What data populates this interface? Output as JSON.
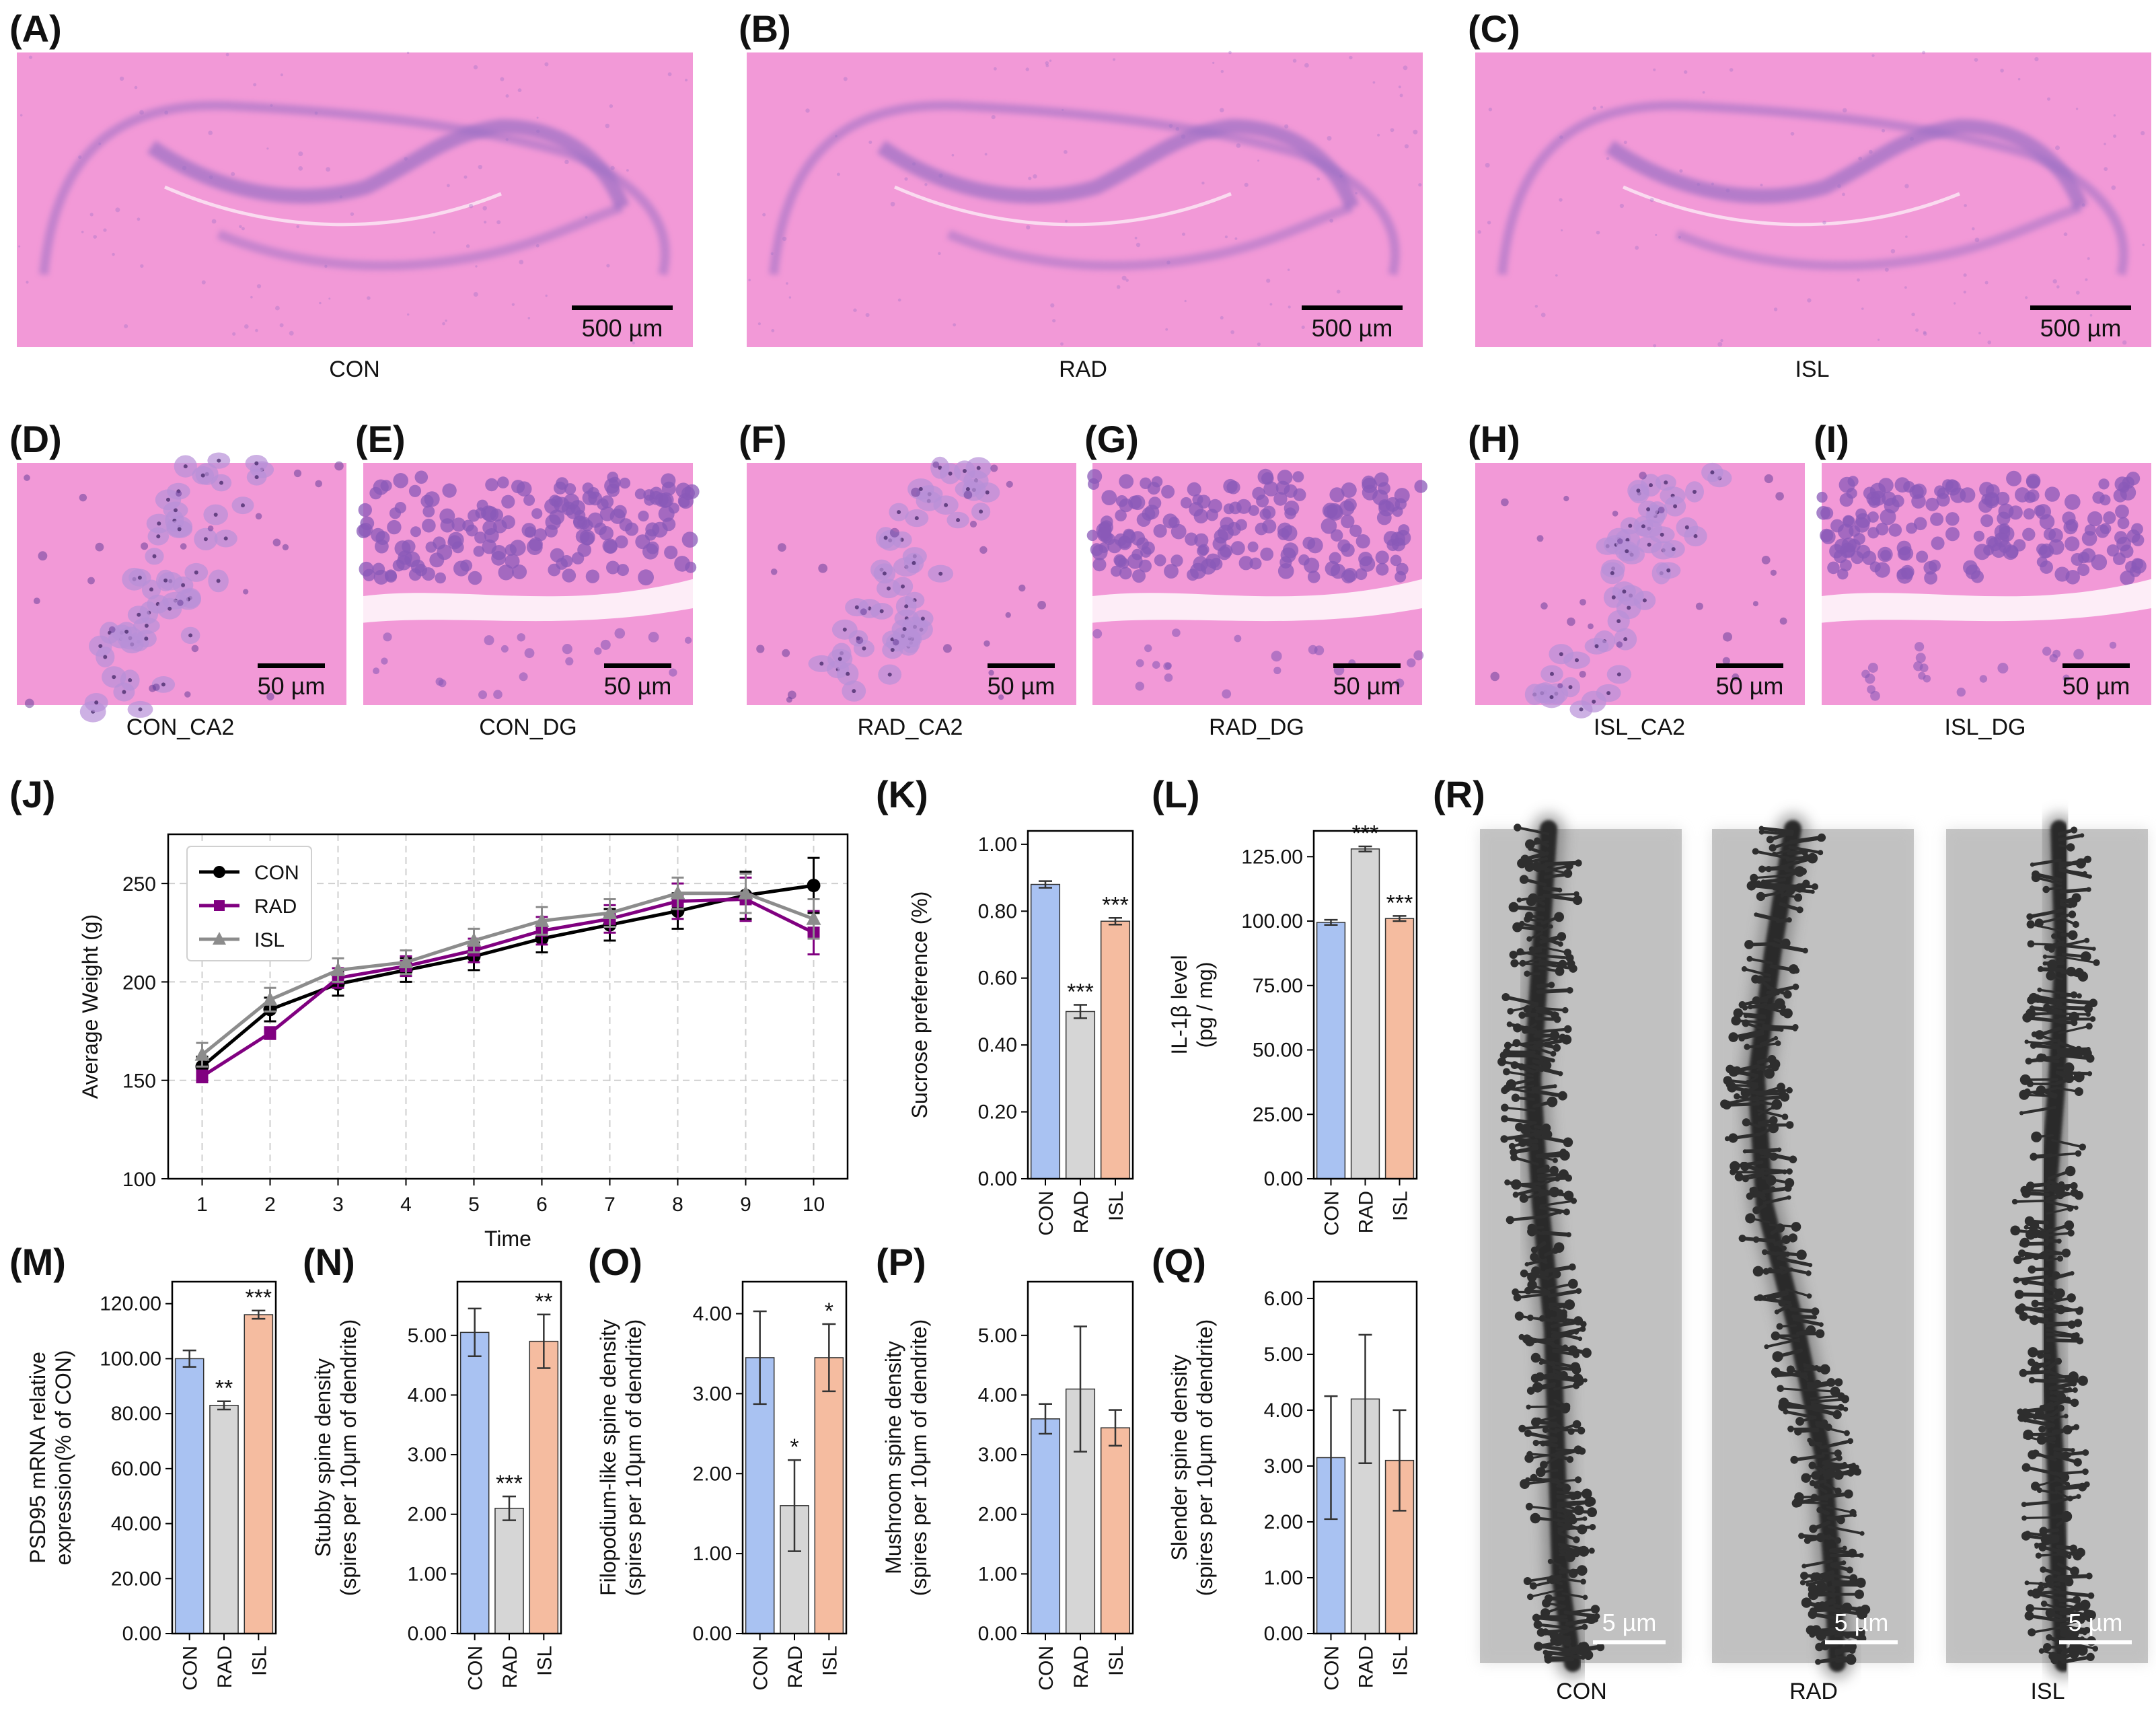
{
  "colors": {
    "con": "#a9c2f2",
    "rad": "#d6d6d6",
    "isl": "#f5bca0",
    "con_line": "#000000",
    "rad_line": "#800080",
    "isl_line": "#8c8c8c",
    "he_tissue": "#f08ad0",
    "he_cells": "#9b6fc5",
    "golgi_bg": "#c6c6c6",
    "golgi_dendrite": "#2a2a2a"
  },
  "panels": {
    "A": {
      "label": "(A)",
      "caption": "CON",
      "scale": "500 µm"
    },
    "B": {
      "label": "(B)",
      "caption": "RAD",
      "scale": "500 µm"
    },
    "C": {
      "label": "(C)",
      "caption": "ISL",
      "scale": "500 µm"
    },
    "D": {
      "label": "(D)",
      "caption": "CON_CA2",
      "scale": "50 µm"
    },
    "E": {
      "label": "(E)",
      "caption": "CON_DG",
      "scale": "50 µm"
    },
    "F": {
      "label": "(F)",
      "caption": "RAD_CA2",
      "scale": "50 µm"
    },
    "G": {
      "label": "(G)",
      "caption": "RAD_DG",
      "scale": "50 µm"
    },
    "H": {
      "label": "(H)",
      "caption": "ISL_CA2",
      "scale": "50 µm"
    },
    "I": {
      "label": "(I)",
      "caption": "ISL_DG",
      "scale": "50 µm"
    },
    "J": {
      "label": "(J)"
    },
    "K": {
      "label": "(K)"
    },
    "L": {
      "label": "(L)"
    },
    "M": {
      "label": "(M)"
    },
    "N": {
      "label": "(N)"
    },
    "O": {
      "label": "(O)"
    },
    "P": {
      "label": "(P)"
    },
    "Q": {
      "label": "(Q)"
    },
    "R": {
      "label": "(R)",
      "captions": [
        "CON",
        "RAD",
        "ISL"
      ],
      "scale": "5 µm"
    }
  },
  "chart_data": [
    {
      "id": "J",
      "type": "line",
      "xlabel": "Time",
      "ylabel": "Average Weight (g)",
      "x": [
        1,
        2,
        3,
        4,
        5,
        6,
        7,
        8,
        9,
        10
      ],
      "xticks": [
        "1",
        "2",
        "3",
        "4",
        "5",
        "6",
        "7",
        "8",
        "9",
        "10"
      ],
      "ylim": [
        100,
        275
      ],
      "yticks": [
        "100",
        "150",
        "200",
        "250"
      ],
      "grid": true,
      "legend": "top-left",
      "series": [
        {
          "name": "CON",
          "marker": "circle",
          "values": [
            157,
            186,
            199,
            206,
            213,
            222,
            229,
            236,
            244,
            249
          ],
          "err": [
            5,
            6,
            6,
            6,
            7,
            7,
            8,
            9,
            12,
            14
          ]
        },
        {
          "name": "RAD",
          "marker": "square",
          "values": [
            152,
            174,
            202,
            208,
            216,
            226,
            232,
            241,
            242,
            225
          ],
          "err": [
            3,
            3,
            5,
            5,
            6,
            7,
            7,
            9,
            11,
            11
          ]
        },
        {
          "name": "ISL",
          "marker": "triangle",
          "values": [
            163,
            191,
            206,
            210,
            221,
            231,
            235,
            245,
            245,
            232
          ],
          "err": [
            6,
            6,
            6,
            6,
            6,
            7,
            7,
            8,
            10,
            10
          ]
        }
      ]
    },
    {
      "id": "K",
      "type": "bar",
      "ylabel": "Sucrose preference (%)",
      "categories": [
        "CON",
        "RAD",
        "ISL"
      ],
      "values": [
        0.88,
        0.5,
        0.77
      ],
      "err": [
        0.01,
        0.02,
        0.01
      ],
      "stars": [
        "",
        "***",
        "***"
      ],
      "ylim": [
        0,
        1.04
      ],
      "yticks": [
        0,
        0.2,
        0.4,
        0.6,
        0.8,
        1.0
      ],
      "ytick_labels": [
        "0.00",
        "0.20",
        "0.40",
        "0.60",
        "0.80",
        "1.00"
      ]
    },
    {
      "id": "L",
      "type": "bar",
      "ylabel": "IL-1β level\n(pg / mg)",
      "categories": [
        "CON",
        "RAD",
        "ISL"
      ],
      "values": [
        99.5,
        128,
        101
      ],
      "err": [
        1,
        1,
        1
      ],
      "stars": [
        "",
        "***",
        "***"
      ],
      "ylim": [
        0,
        135
      ],
      "yticks": [
        0,
        25,
        50,
        75,
        100,
        125
      ],
      "ytick_labels": [
        "0.00",
        "25.00",
        "50.00",
        "75.00",
        "100.00",
        "125.00"
      ]
    },
    {
      "id": "M",
      "type": "bar",
      "ylabel": "PSD95 mRNA relative\nexpression(% of CON)",
      "categories": [
        "CON",
        "RAD",
        "ISL"
      ],
      "values": [
        100,
        83,
        116
      ],
      "err": [
        3,
        1.5,
        1.5
      ],
      "stars": [
        "",
        "**",
        "***"
      ],
      "ylim": [
        0,
        128
      ],
      "yticks": [
        0,
        20,
        40,
        60,
        80,
        100,
        120
      ],
      "ytick_labels": [
        "0.00",
        "20.00",
        "40.00",
        "60.00",
        "80.00",
        "100.00",
        "120.00"
      ]
    },
    {
      "id": "N",
      "type": "bar",
      "ylabel": "Stubby spine density\n(spires per 10μm of dendrite)",
      "categories": [
        "CON",
        "RAD",
        "ISL"
      ],
      "values": [
        5.05,
        2.1,
        4.9
      ],
      "err": [
        0.4,
        0.2,
        0.45
      ],
      "stars": [
        "",
        "***",
        "**"
      ],
      "ylim": [
        0,
        5.9
      ],
      "yticks": [
        0,
        1,
        2,
        3,
        4,
        5
      ],
      "ytick_labels": [
        "0.00",
        "1.00",
        "2.00",
        "3.00",
        "4.00",
        "5.00"
      ]
    },
    {
      "id": "O",
      "type": "bar",
      "ylabel": "Filopodium-like spine density\n(spires per 10μm of dendrite)",
      "categories": [
        "CON",
        "RAD",
        "ISL"
      ],
      "values": [
        3.45,
        1.6,
        3.45
      ],
      "err": [
        0.58,
        0.57,
        0.42
      ],
      "stars": [
        "",
        "*",
        "*"
      ],
      "ylim": [
        0,
        4.4
      ],
      "yticks": [
        0,
        1,
        2,
        3,
        4
      ],
      "ytick_labels": [
        "0.00",
        "1.00",
        "2.00",
        "3.00",
        "4.00"
      ]
    },
    {
      "id": "P",
      "type": "bar",
      "ylabel": "Mushroom spine density\n(spires per 10μm of dendrite)",
      "categories": [
        "CON",
        "RAD",
        "ISL"
      ],
      "values": [
        3.6,
        4.1,
        3.45
      ],
      "err": [
        0.25,
        1.05,
        0.3
      ],
      "stars": [
        "",
        "",
        ""
      ],
      "ylim": [
        0,
        5.9
      ],
      "yticks": [
        0,
        1,
        2,
        3,
        4,
        5
      ],
      "ytick_labels": [
        "0.00",
        "1.00",
        "2.00",
        "3.00",
        "4.00",
        "5.00"
      ]
    },
    {
      "id": "Q",
      "type": "bar",
      "ylabel": "Slender spine density\n(spires per 10μm of dendrite)",
      "categories": [
        "CON",
        "RAD",
        "ISL"
      ],
      "values": [
        3.15,
        4.2,
        3.1
      ],
      "err": [
        1.1,
        1.15,
        0.9
      ],
      "stars": [
        "",
        "",
        ""
      ],
      "ylim": [
        0,
        6.3
      ],
      "yticks": [
        0,
        1,
        2,
        3,
        4,
        5,
        6
      ],
      "ytick_labels": [
        "0.00",
        "1.00",
        "2.00",
        "3.00",
        "4.00",
        "5.00",
        "6.00"
      ]
    }
  ]
}
